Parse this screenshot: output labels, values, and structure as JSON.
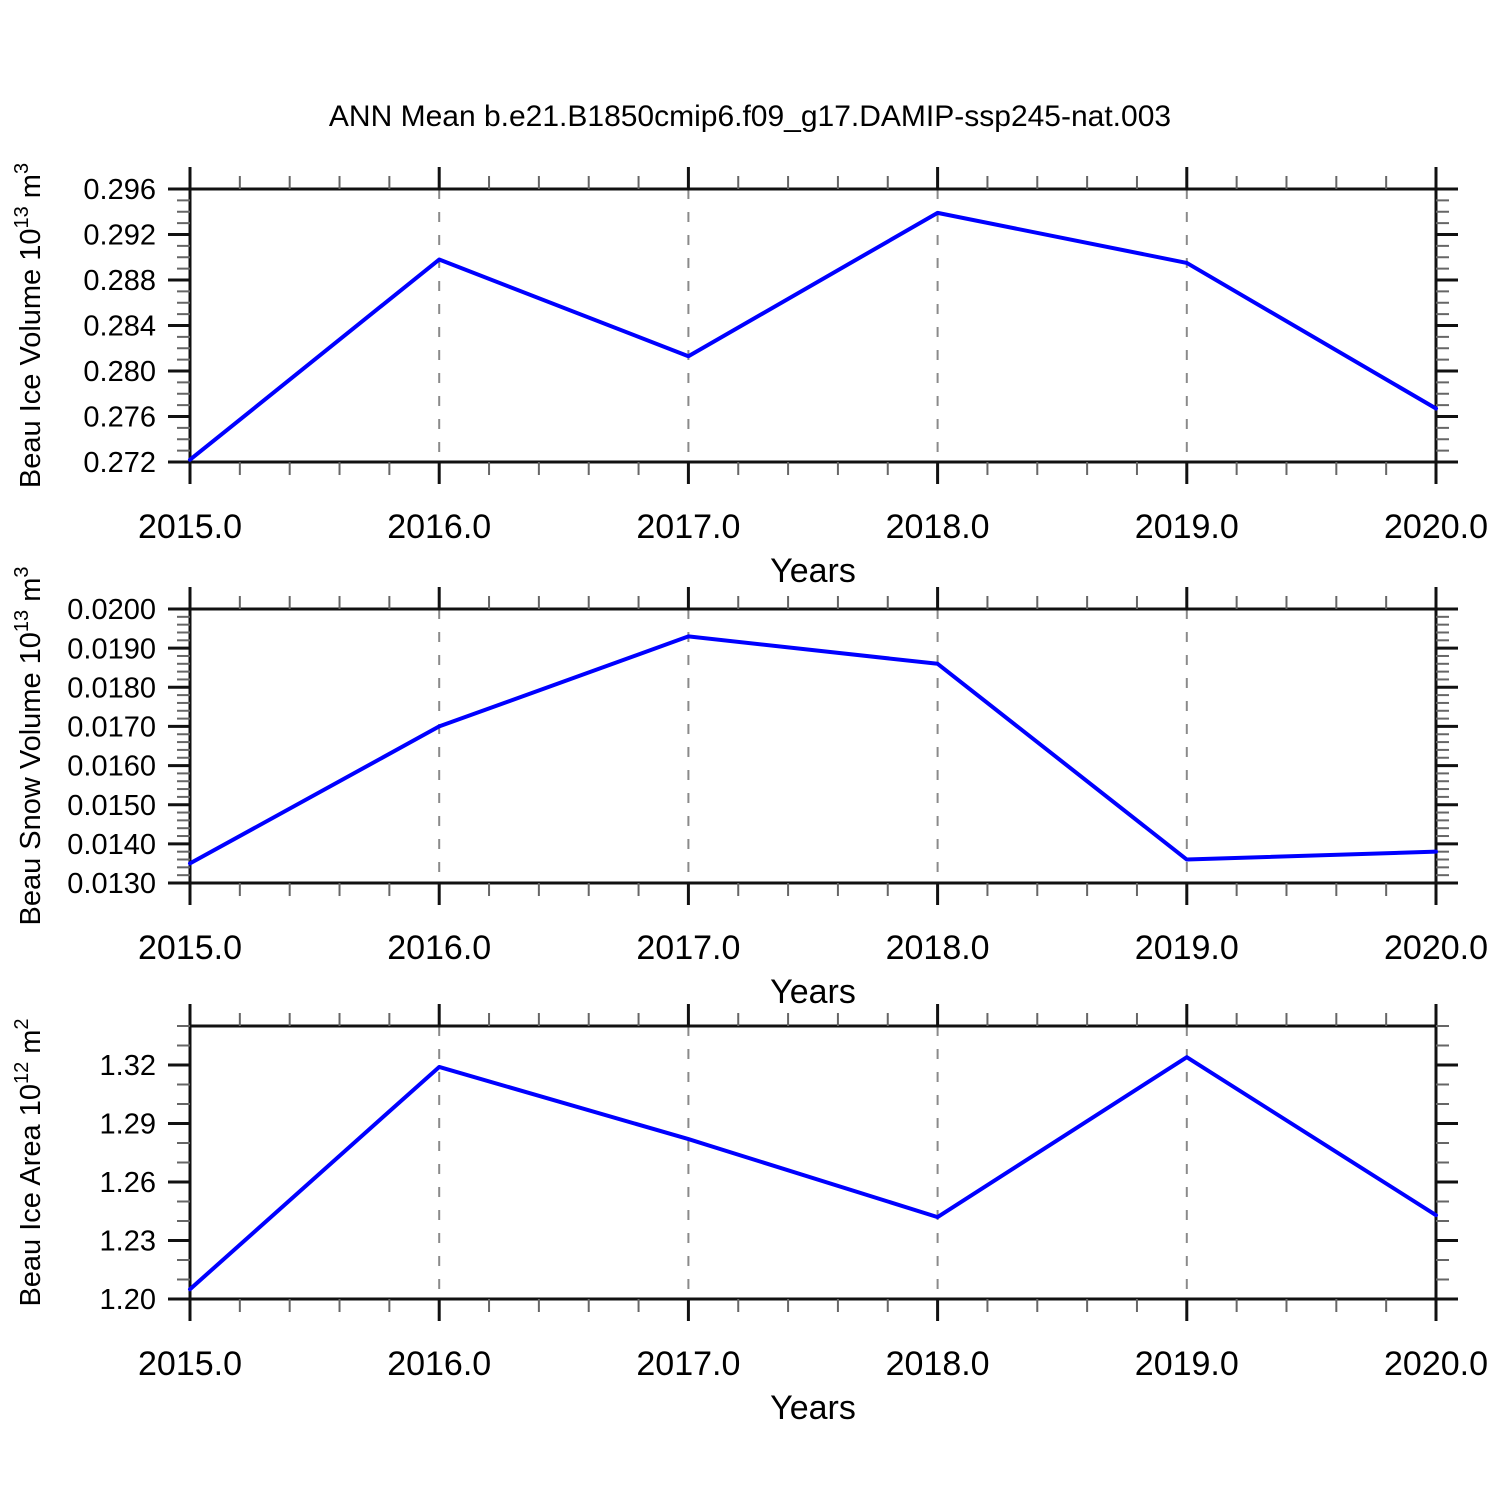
{
  "title": "ANN Mean b.e21.B1850cmip6.f09_g17.DAMIP-ssp245-nat.003",
  "colors": {
    "line": "#0000ff",
    "grid": "#8a8a8a",
    "axis": "#111111",
    "minor_tick": "#666666",
    "text": "#000000",
    "background": "#ffffff"
  },
  "x_axis": {
    "label": "Years",
    "min": 2015,
    "max": 2020,
    "major_step": 1,
    "minor_step": 0.2,
    "tick_labels": [
      "2015.0",
      "2016.0",
      "2017.0",
      "2018.0",
      "2019.0",
      "2020.0"
    ],
    "gridline_years": [
      2016,
      2017,
      2018,
      2019
    ]
  },
  "chart_data": [
    {
      "type": "line",
      "name": "beau-ice-volume",
      "ylabel_text": "Beau Ice Volume 10^13 m^3",
      "ylabel_parts": [
        {
          "t": "Beau Ice Volume 10"
        },
        {
          "t": "13",
          "sup": true
        },
        {
          "t": " m"
        },
        {
          "t": "3",
          "sup": true
        }
      ],
      "xlabel": "Years",
      "x": [
        2015,
        2016,
        2017,
        2018,
        2019,
        2020
      ],
      "values": [
        0.2722,
        0.2898,
        0.2813,
        0.2939,
        0.2895,
        0.2767
      ],
      "ylim": [
        0.272,
        0.296
      ],
      "y_major_step": 0.004,
      "y_minor_step": 0.001,
      "y_tick_labels": [
        "0.272",
        "0.276",
        "0.280",
        "0.284",
        "0.288",
        "0.292",
        "0.296"
      ],
      "grid": "dashed-vertical",
      "legend": "none"
    },
    {
      "type": "line",
      "name": "beau-snow-volume",
      "ylabel_text": "Beau Snow Volume 10^13 m^3",
      "ylabel_parts": [
        {
          "t": "Beau Snow Volume 10"
        },
        {
          "t": "13",
          "sup": true
        },
        {
          "t": " m"
        },
        {
          "t": "3",
          "sup": true
        }
      ],
      "xlabel": "Years",
      "x": [
        2015,
        2016,
        2017,
        2018,
        2019,
        2020
      ],
      "values": [
        0.0135,
        0.017,
        0.0193,
        0.0186,
        0.0136,
        0.0138
      ],
      "ylim": [
        0.013,
        0.02
      ],
      "y_major_step": 0.001,
      "y_minor_step": 0.0002,
      "y_tick_labels": [
        "0.0130",
        "0.0140",
        "0.0150",
        "0.0160",
        "0.0170",
        "0.0180",
        "0.0190",
        "0.0200"
      ],
      "grid": "dashed-vertical",
      "legend": "none"
    },
    {
      "type": "line",
      "name": "beau-ice-area",
      "ylabel_text": "Beau Ice Area 10^12 m^2",
      "ylabel_parts": [
        {
          "t": "Beau Ice Area 10"
        },
        {
          "t": "12",
          "sup": true
        },
        {
          "t": " m"
        },
        {
          "t": "2",
          "sup": true
        }
      ],
      "xlabel": "Years",
      "x": [
        2015,
        2016,
        2017,
        2018,
        2019,
        2020
      ],
      "values": [
        1.205,
        1.319,
        1.282,
        1.242,
        1.324,
        1.243
      ],
      "ylim": [
        1.2,
        1.34
      ],
      "y_major_step": 0.03,
      "y_minor_step": 0.01,
      "y_tick_labels": [
        "1.20",
        "1.23",
        "1.26",
        "1.29",
        "1.32"
      ],
      "grid": "dashed-vertical",
      "legend": "none"
    }
  ]
}
